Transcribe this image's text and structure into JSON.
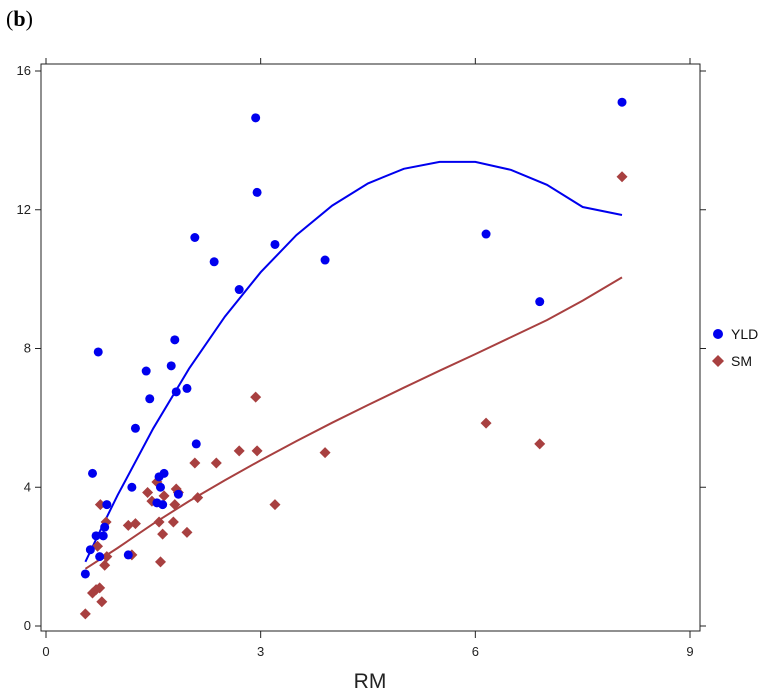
{
  "panel_label": {
    "open": "(",
    "letter": "b",
    "close": ")"
  },
  "chart_data": {
    "type": "scatter",
    "title": "",
    "xlabel": "RM",
    "ylabel": "",
    "xlim": [
      0,
      9
    ],
    "ylim": [
      0,
      16
    ],
    "xticks": [
      0,
      3,
      6,
      9
    ],
    "yticks": [
      0,
      4,
      8,
      12,
      16
    ],
    "grid": false,
    "legend_position": "right",
    "series": [
      {
        "name": "YLD",
        "color": "#0000ee",
        "marker": "circle",
        "points": [
          [
            0.55,
            1.5
          ],
          [
            0.62,
            2.2
          ],
          [
            0.65,
            4.4
          ],
          [
            0.7,
            2.6
          ],
          [
            0.73,
            7.9
          ],
          [
            0.75,
            2.0
          ],
          [
            0.8,
            2.6
          ],
          [
            0.82,
            2.85
          ],
          [
            0.85,
            3.5
          ],
          [
            1.15,
            2.05
          ],
          [
            1.2,
            4.0
          ],
          [
            1.25,
            5.7
          ],
          [
            1.4,
            7.35
          ],
          [
            1.45,
            6.55
          ],
          [
            1.55,
            3.55
          ],
          [
            1.58,
            4.3
          ],
          [
            1.6,
            4.0
          ],
          [
            1.63,
            3.5
          ],
          [
            1.65,
            4.4
          ],
          [
            1.75,
            7.5
          ],
          [
            1.8,
            8.25
          ],
          [
            1.82,
            6.75
          ],
          [
            1.85,
            3.8
          ],
          [
            1.97,
            6.85
          ],
          [
            2.08,
            11.2
          ],
          [
            2.1,
            5.25
          ],
          [
            2.35,
            10.5
          ],
          [
            2.7,
            9.7
          ],
          [
            2.93,
            14.65
          ],
          [
            2.95,
            12.5
          ],
          [
            3.2,
            11.0
          ],
          [
            3.9,
            10.55
          ],
          [
            6.15,
            11.3
          ],
          [
            6.9,
            9.35
          ],
          [
            8.05,
            15.1
          ]
        ],
        "fit": [
          [
            0.55,
            1.85
          ],
          [
            0.8,
            2.93
          ],
          [
            1.0,
            3.77
          ],
          [
            1.5,
            5.7
          ],
          [
            2.0,
            7.42
          ],
          [
            2.5,
            8.92
          ],
          [
            3.0,
            10.2
          ],
          [
            3.5,
            11.27
          ],
          [
            4.0,
            12.12
          ],
          [
            4.5,
            12.76
          ],
          [
            5.0,
            13.18
          ],
          [
            5.5,
            13.38
          ],
          [
            6.0,
            13.38
          ],
          [
            6.5,
            13.15
          ],
          [
            7.0,
            12.72
          ],
          [
            7.5,
            12.08
          ],
          [
            8.05,
            11.85
          ]
        ]
      },
      {
        "name": "SM",
        "color": "#a84040",
        "marker": "diamond",
        "points": [
          [
            0.55,
            0.35
          ],
          [
            0.65,
            0.95
          ],
          [
            0.7,
            1.05
          ],
          [
            0.72,
            2.3
          ],
          [
            0.75,
            1.1
          ],
          [
            0.76,
            3.5
          ],
          [
            0.78,
            0.7
          ],
          [
            0.82,
            1.75
          ],
          [
            0.84,
            3.0
          ],
          [
            0.85,
            2.0
          ],
          [
            1.15,
            2.9
          ],
          [
            1.2,
            2.05
          ],
          [
            1.25,
            2.95
          ],
          [
            1.42,
            3.85
          ],
          [
            1.48,
            3.6
          ],
          [
            1.55,
            4.15
          ],
          [
            1.58,
            3.0
          ],
          [
            1.6,
            1.85
          ],
          [
            1.63,
            2.65
          ],
          [
            1.65,
            3.75
          ],
          [
            1.78,
            3.0
          ],
          [
            1.8,
            3.5
          ],
          [
            1.82,
            3.95
          ],
          [
            1.85,
            3.85
          ],
          [
            1.97,
            2.7
          ],
          [
            2.08,
            4.7
          ],
          [
            2.12,
            3.7
          ],
          [
            2.38,
            4.7
          ],
          [
            2.7,
            5.05
          ],
          [
            2.93,
            6.6
          ],
          [
            2.95,
            5.05
          ],
          [
            3.2,
            3.5
          ],
          [
            3.9,
            5.0
          ],
          [
            6.15,
            5.85
          ],
          [
            6.9,
            5.25
          ],
          [
            8.05,
            12.95
          ]
        ],
        "fit": [
          [
            0.55,
            1.65
          ],
          [
            1.0,
            2.25
          ],
          [
            1.5,
            2.95
          ],
          [
            2.0,
            3.6
          ],
          [
            2.5,
            4.2
          ],
          [
            3.0,
            4.78
          ],
          [
            3.5,
            5.33
          ],
          [
            4.0,
            5.86
          ],
          [
            4.5,
            6.37
          ],
          [
            5.0,
            6.87
          ],
          [
            5.5,
            7.36
          ],
          [
            6.0,
            7.84
          ],
          [
            6.5,
            8.33
          ],
          [
            7.0,
            8.82
          ],
          [
            7.5,
            9.38
          ],
          [
            8.05,
            10.05
          ]
        ]
      }
    ]
  }
}
